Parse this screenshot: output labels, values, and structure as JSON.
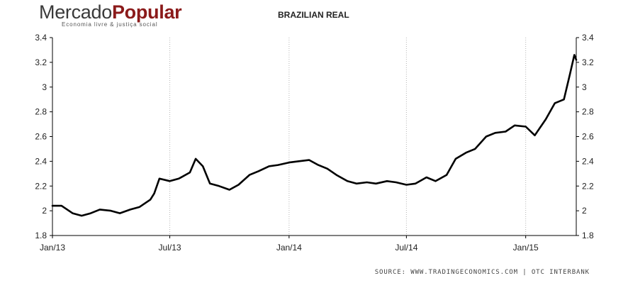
{
  "logo": {
    "main": "Mercado",
    "bold": "Popular",
    "tagline": "Economia livre & justiça social"
  },
  "source": "SOURCE: WWW.TRADINGECONOMICS.COM | OTC INTERBANK",
  "chart_data": {
    "type": "line",
    "title": "BRAZILIAN REAL",
    "xlabel": "",
    "ylabel": "",
    "ylim": [
      1.8,
      3.4
    ],
    "yticks": [
      1.8,
      2,
      2.2,
      2.4,
      2.6,
      2.8,
      3,
      3.2,
      3.4
    ],
    "ytick_labels": [
      "1.8",
      "2",
      "2.2",
      "2.4",
      "2.6",
      "2.8",
      "3",
      "3.2",
      "3.4"
    ],
    "xlim": [
      "2013-01-01",
      "2015-03-20"
    ],
    "xticks": [
      "2013-01-01",
      "2013-07-01",
      "2014-01-01",
      "2014-07-01",
      "2015-01-01"
    ],
    "xtick_labels": [
      "Jan/13",
      "Jul/13",
      "Jan/14",
      "Jul/14",
      "Jan/15"
    ],
    "grid": "vertical dotted",
    "line_color": "#000000",
    "series": [
      {
        "x": [
          "2013-01-01",
          "2013-01-15",
          "2013-02-01",
          "2013-02-15",
          "2013-03-01",
          "2013-03-15",
          "2013-04-01",
          "2013-04-15",
          "2013-05-01",
          "2013-05-15",
          "2013-06-01",
          "2013-06-07",
          "2013-06-15",
          "2013-07-01",
          "2013-07-15",
          "2013-08-01",
          "2013-08-10",
          "2013-08-21",
          "2013-09-01",
          "2013-09-15",
          "2013-10-01",
          "2013-10-15",
          "2013-11-01",
          "2013-11-15",
          "2013-12-01",
          "2013-12-15",
          "2014-01-01",
          "2014-01-15",
          "2014-02-01",
          "2014-02-15",
          "2014-03-01",
          "2014-03-15",
          "2014-04-01",
          "2014-04-15",
          "2014-05-01",
          "2014-05-15",
          "2014-06-01",
          "2014-06-15",
          "2014-07-01",
          "2014-07-15",
          "2014-08-01",
          "2014-08-15",
          "2014-09-01",
          "2014-09-15",
          "2014-10-01",
          "2014-10-15",
          "2014-11-01",
          "2014-11-15",
          "2014-12-01",
          "2014-12-15",
          "2015-01-01",
          "2015-01-15",
          "2015-02-01",
          "2015-02-15",
          "2015-03-01",
          "2015-03-10",
          "2015-03-17",
          "2015-03-20"
        ],
        "y": [
          2.04,
          2.04,
          1.98,
          1.96,
          1.98,
          2.01,
          2.0,
          1.98,
          2.01,
          2.03,
          2.09,
          2.14,
          2.26,
          2.24,
          2.26,
          2.31,
          2.42,
          2.36,
          2.22,
          2.2,
          2.17,
          2.21,
          2.29,
          2.32,
          2.36,
          2.37,
          2.39,
          2.4,
          2.41,
          2.37,
          2.34,
          2.29,
          2.24,
          2.22,
          2.23,
          2.22,
          2.24,
          2.23,
          2.21,
          2.22,
          2.27,
          2.24,
          2.29,
          2.42,
          2.47,
          2.5,
          2.6,
          2.63,
          2.64,
          2.69,
          2.68,
          2.61,
          2.74,
          2.87,
          2.9,
          3.1,
          3.26,
          3.22
        ]
      }
    ]
  }
}
